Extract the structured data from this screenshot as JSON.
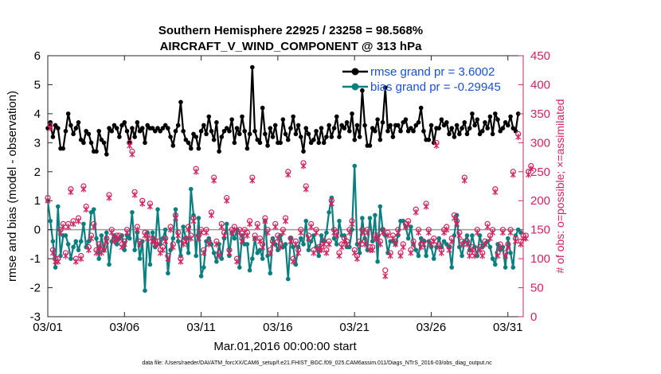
{
  "chart_data": {
    "type": "line",
    "title": "Southern Hemisphere 22925 / 23258 = 98.568%",
    "subtitle": "AIRCRAFT_V_WIND_COMPONENT @ 313 hPa",
    "xlabel": "Mar.01,2016 00:00:00 start",
    "ylabel": "rmse and bias (model - observation)",
    "y2label": "# of obs: o=possible; ×=assimilated",
    "footnote": "data file: /Users/raeder/DAI/ATM_forcXX/CAM6_setup/f.e21.FHIST_BGC.f09_025.CAM6assim.011/Diags_NTrS_2016-03/obs_diag_output.nc",
    "xlim": [
      1,
      32
    ],
    "ylim": [
      -3,
      6
    ],
    "y2lim": [
      0,
      450
    ],
    "x_ticks": [
      1,
      6,
      11,
      16,
      21,
      26,
      31
    ],
    "x_tick_labels": [
      "03/01",
      "03/06",
      "03/11",
      "03/16",
      "03/21",
      "03/26",
      "03/31"
    ],
    "y_ticks": [
      -3,
      -2,
      -1,
      0,
      1,
      2,
      3,
      4,
      5,
      6
    ],
    "y_tick_labels": [
      "-3",
      "-2",
      "-1",
      "0",
      "1",
      "2",
      "3",
      "4",
      "5",
      "6"
    ],
    "y2_ticks": [
      0,
      50,
      100,
      150,
      200,
      250,
      300,
      350,
      400,
      450
    ],
    "y2_tick_labels": [
      "0",
      "50",
      "100",
      "150",
      "200",
      "250",
      "300",
      "350",
      "400",
      "450"
    ],
    "legend_position": "top-right",
    "series": [
      {
        "name": "rmse grand pr = 3.6002",
        "color": "#000000",
        "axis": "left",
        "values": [
          3.5,
          3.7,
          3.2,
          3.6,
          3.5,
          2.8,
          2.8,
          3.4,
          4.0,
          3.6,
          3.3,
          3.5,
          3.7,
          3.1,
          3.0,
          3.4,
          3.3,
          3.0,
          2.7,
          2.7,
          3.4,
          3.1,
          3.0,
          2.6,
          3.5,
          3.4,
          3.6,
          3.5,
          3.2,
          3.6,
          3.7,
          3.4,
          3.0,
          3.5,
          3.2,
          3.7,
          3.4,
          3.5,
          3.0,
          3.6,
          3.5,
          3.5,
          3.4,
          3.5,
          3.4,
          3.5,
          3.6,
          3.5,
          3.2,
          2.9,
          3.4,
          3.6,
          4.4,
          3.4,
          3.1,
          3.0,
          2.8,
          3.3,
          3.2,
          2.8,
          3.4,
          3.6,
          3.3,
          3.9,
          3.4,
          3.1,
          3.7,
          2.7,
          3.2,
          3.4,
          3.5,
          3.4,
          3.8,
          3.0,
          3.5,
          3.3,
          3.9,
          3.4,
          2.8,
          3.3,
          5.6,
          3.4,
          3.1,
          3.0,
          4.2,
          3.3,
          2.9,
          3.5,
          3.2,
          3.6,
          3.0,
          3.0,
          3.8,
          3.3,
          3.1,
          3.5,
          3.9,
          3.3,
          3.6,
          3.2,
          2.7,
          3.5,
          3.3,
          3.0,
          3.1,
          3.4,
          3.0,
          3.5,
          3.0,
          3.2,
          3.6,
          3.2,
          3.5,
          3.9,
          3.2,
          3.6,
          3.5,
          3.7,
          3.4,
          4.0,
          3.1,
          3.6,
          3.2,
          4.8,
          3.6,
          2.9,
          2.9,
          3.5,
          3.4,
          3.8,
          3.1,
          3.7,
          4.9,
          3.4,
          3.6,
          3.2,
          3.6,
          3.6,
          3.4,
          3.7,
          3.8,
          3.4,
          3.5,
          3.4,
          3.6,
          3.7,
          4.2,
          3.4,
          3.1,
          3.1,
          3.6,
          3.0,
          3.5,
          3.5,
          3.8,
          3.6,
          3.7,
          3.3,
          3.5,
          3.2,
          3.6,
          3.3,
          3.5,
          3.7,
          3.3,
          3.5,
          4.0,
          3.6,
          3.8,
          3.3,
          3.4,
          3.7,
          3.5,
          3.9,
          3.3,
          4.0,
          3.8,
          3.4,
          3.5,
          3.7,
          3.6,
          3.9,
          3.5,
          3.4,
          4.0
        ]
      },
      {
        "name": "bias grand pr = -0.29945",
        "color": "#0a7f7f",
        "axis": "left",
        "values": [
          1.0,
          0.3,
          -0.4,
          -1.3,
          0.8,
          -0.9,
          -0.2,
          -0.2,
          -0.5,
          -1.0,
          -0.6,
          -0.4,
          -0.7,
          -0.4,
          0.2,
          -0.6,
          -0.4,
          0.6,
          0.7,
          -0.3,
          -1.0,
          -0.2,
          -0.7,
          -0.1,
          -1.2,
          -0.4,
          -0.2,
          -0.5,
          -0.3,
          -0.2,
          -0.7,
          -0.2,
          -0.3,
          0.6,
          -0.7,
          -0.1,
          -1.0,
          -0.4,
          -2.1,
          -0.1,
          -1.2,
          -0.1,
          -0.6,
          0.7,
          -0.5,
          -0.3,
          0.0,
          -1.5,
          -0.7,
          -0.3,
          0.7,
          -0.4,
          -0.9,
          0.1,
          -0.3,
          -0.8,
          1.4,
          0.5,
          -0.9,
          0.4,
          -1.6,
          -1.3,
          -0.4,
          -0.3,
          -0.5,
          -0.8,
          -1.1,
          -0.5,
          -1.0,
          -0.3,
          0.2,
          -0.9,
          -0.1,
          -0.3,
          0.0,
          -1.3,
          -0.2,
          -0.5,
          -0.5,
          -1.4,
          -1.0,
          -0.3,
          -0.8,
          -0.7,
          -1.0,
          0.3,
          -0.9,
          -1.5,
          -0.3,
          -0.5,
          -0.7,
          -0.2,
          -0.6,
          -0.5,
          -1.7,
          -0.3,
          -0.6,
          -1.2,
          -0.6,
          -0.3,
          -0.5,
          0.3,
          -0.7,
          -0.4,
          -0.2,
          -0.6,
          -0.9,
          -0.2,
          -0.4,
          -0.1,
          0.6,
          1.1,
          -0.3,
          -0.5,
          0.3,
          -0.2,
          -0.2,
          -0.6,
          -0.6,
          0.0,
          2.2,
          -0.5,
          -0.8,
          0.4,
          -0.3,
          -0.7,
          0.4,
          -0.4,
          0.5,
          -1.1,
          0.8,
          0.0,
          -0.2,
          -0.8,
          -0.4,
          -0.4,
          -0.5,
          -0.2,
          0.3,
          0.3,
          0.1,
          -0.3,
          0.1,
          -0.5,
          -0.7,
          -0.9,
          -0.3,
          -0.4,
          -0.9,
          -0.4,
          -0.6,
          -1.0,
          -0.6,
          -0.3,
          -0.6,
          -0.4,
          -0.5,
          -0.6,
          -1.3,
          -0.2,
          0.5,
          -0.6,
          -0.9,
          -0.4,
          -0.2,
          -0.7,
          -0.2,
          -0.6,
          -0.9,
          -0.2,
          -0.6,
          -0.5,
          -0.4,
          -0.6,
          -1.0,
          -1.2,
          -0.5,
          -0.7,
          -0.6,
          -1.3,
          -0.3,
          -0.8,
          -1.3,
          -0.2,
          0.0,
          -0.1
        ]
      },
      {
        "name": "obs possible",
        "color": "#d6215f",
        "axis": "right",
        "marker": "o",
        "values": [
          205,
          330,
          115,
          100,
          100,
          150,
          160,
          110,
          160,
          220,
          165,
          100,
          170,
          105,
          225,
          190,
          120,
          140,
          160,
          115,
          125,
          115,
          120,
          135,
          210,
          150,
          135,
          140,
          140,
          125,
          130,
          150,
          300,
          285,
          215,
          155,
          130,
          200,
          145,
          140,
          195,
          135,
          130,
          130,
          115,
          120,
          135,
          105,
          155,
          125,
          175,
          145,
          100,
          130,
          135,
          155,
          140,
          170,
          255,
          140,
          150,
          115,
          150,
          130,
          180,
          240,
          130,
          110,
          160,
          145,
          205,
          115,
          150,
          155,
          100,
          150,
          135,
          150,
          145,
          165,
          240,
          140,
          160,
          135,
          125,
          170,
          150,
          115,
          130,
          160,
          140,
          125,
          150,
          170,
          250,
          135,
          100,
          130,
          115,
          150,
          265,
          225,
          140,
          160,
          115,
          150,
          120,
          120,
          130,
          115,
          130,
          200,
          150,
          145,
          110,
          125,
          135,
          130,
          150,
          165,
          115,
          105,
          130,
          150,
          130,
          150,
          120,
          120,
          140,
          140,
          130,
          150,
          80,
          145,
          110,
          140,
          130,
          150,
          110,
          125,
          160,
          165,
          115,
          130,
          185,
          150,
          125,
          130,
          195,
          150,
          130,
          135,
          300,
          125,
          115,
          150,
          155,
          120,
          135,
          175,
          165,
          145,
          130,
          240,
          130,
          110,
          120,
          110,
          150,
          120,
          110,
          130,
          160,
          140,
          150,
          220,
          110,
          125,
          150,
          110,
          125,
          150,
          250,
          135,
          315,
          130,
          140,
          140,
          250,
          260
        ]
      },
      {
        "name": "obs assimilated",
        "color": "#d6215f",
        "axis": "right",
        "marker": "x",
        "values": [
          200,
          325,
          110,
          95,
          95,
          145,
          155,
          105,
          155,
          215,
          160,
          95,
          165,
          100,
          220,
          185,
          115,
          135,
          155,
          110,
          120,
          110,
          115,
          130,
          205,
          145,
          130,
          135,
          135,
          120,
          125,
          145,
          295,
          280,
          210,
          150,
          125,
          195,
          140,
          135,
          190,
          130,
          125,
          125,
          110,
          115,
          130,
          100,
          150,
          120,
          170,
          140,
          95,
          125,
          130,
          150,
          135,
          165,
          250,
          135,
          145,
          110,
          145,
          125,
          175,
          235,
          125,
          105,
          155,
          140,
          200,
          110,
          145,
          150,
          95,
          145,
          130,
          145,
          140,
          160,
          235,
          135,
          155,
          130,
          120,
          165,
          145,
          110,
          125,
          155,
          135,
          120,
          145,
          165,
          245,
          130,
          95,
          125,
          110,
          145,
          260,
          220,
          135,
          155,
          110,
          145,
          115,
          115,
          125,
          110,
          125,
          195,
          145,
          140,
          105,
          120,
          130,
          125,
          145,
          160,
          110,
          100,
          125,
          145,
          125,
          145,
          115,
          115,
          135,
          135,
          125,
          145,
          70,
          140,
          105,
          135,
          125,
          145,
          105,
          120,
          155,
          160,
          110,
          125,
          180,
          145,
          120,
          125,
          190,
          145,
          125,
          130,
          295,
          120,
          110,
          145,
          150,
          115,
          130,
          170,
          160,
          140,
          125,
          235,
          125,
          105,
          115,
          105,
          145,
          115,
          105,
          125,
          155,
          135,
          145,
          215,
          105,
          120,
          145,
          105,
          120,
          145,
          245,
          130,
          310,
          125,
          135,
          135,
          245,
          255
        ]
      }
    ],
    "x_step": 0.1667,
    "x_start": 1
  }
}
